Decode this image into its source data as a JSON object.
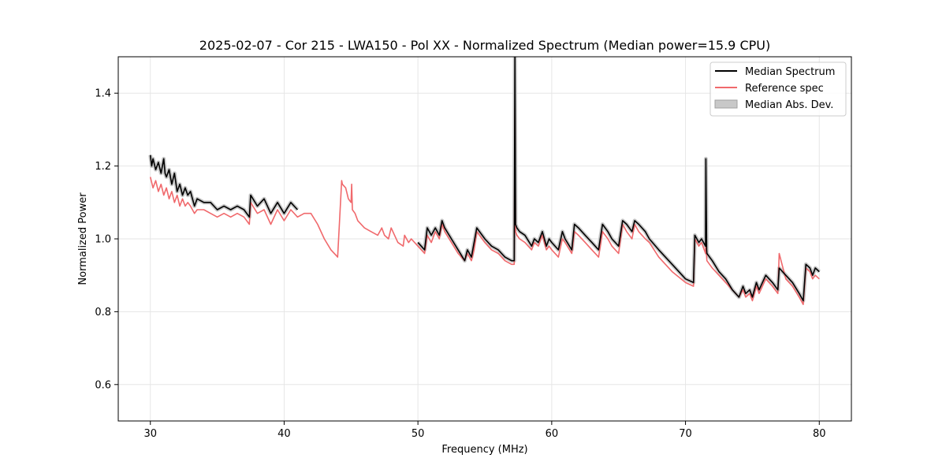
{
  "chart_data": {
    "type": "line",
    "title": "2025-02-07 - Cor 215 - LWA150 - Pol XX - Normalized Spectrum (Median power=15.9 CPU)",
    "xlabel": "Frequency (MHz)",
    "ylabel": "Normalized Power",
    "xlim": [
      27.6,
      82.4
    ],
    "ylim": [
      0.5,
      1.5
    ],
    "x_ticks": [
      30,
      40,
      50,
      60,
      70,
      80
    ],
    "y_ticks": [
      0.6,
      0.8,
      1.0,
      1.2,
      1.4
    ],
    "x_tick_labels": [
      "30",
      "40",
      "50",
      "60",
      "70",
      "80"
    ],
    "y_tick_labels": [
      "0.6",
      "0.8",
      "1.0",
      "1.2",
      "1.4"
    ],
    "grid": true,
    "legend_position": "top-right",
    "legend": [
      "Median Spectrum",
      "Reference spec",
      "Median Abs. Dev."
    ],
    "series": [
      {
        "name": "Median Spectrum",
        "color": "#000000",
        "band_color": "#c8c8c8",
        "segments": [
          {
            "x": [
              30.0,
              30.1,
              30.2,
              30.4,
              30.6,
              30.8,
              31.0,
              31.1,
              31.2,
              31.4,
              31.6,
              31.8,
              32.0,
              32.2,
              32.4,
              32.6,
              32.8,
              33.0,
              33.3,
              33.5,
              34.0,
              34.5,
              35.0,
              35.5,
              36.0,
              36.5,
              37.0,
              37.4,
              37.5,
              38.0,
              38.5,
              39.0,
              39.5,
              40.0,
              40.5,
              41.0
            ],
            "y": [
              1.23,
              1.2,
              1.22,
              1.19,
              1.21,
              1.18,
              1.22,
              1.18,
              1.17,
              1.19,
              1.15,
              1.18,
              1.13,
              1.15,
              1.12,
              1.14,
              1.12,
              1.13,
              1.09,
              1.11,
              1.1,
              1.1,
              1.08,
              1.09,
              1.08,
              1.09,
              1.08,
              1.06,
              1.12,
              1.09,
              1.11,
              1.07,
              1.1,
              1.07,
              1.1,
              1.08
            ]
          },
          {
            "x": [
              50.0,
              50.5,
              50.7,
              51.0,
              51.3,
              51.6,
              51.8,
              52.0,
              52.5,
              53.0,
              53.5,
              53.7,
              54.0,
              54.2,
              54.4,
              55.0,
              55.5,
              56.0,
              56.5,
              57.0,
              57.2,
              57.25,
              57.3,
              57.4,
              57.6,
              58.0,
              58.5,
              58.7,
              59.0,
              59.3,
              59.6,
              59.8,
              60.0,
              60.5,
              60.8,
              61.0,
              61.5,
              61.7,
              62.0,
              62.5,
              63.0,
              63.5,
              63.8,
              64.2,
              64.5,
              65.0,
              65.3,
              65.6,
              66.0,
              66.2,
              66.5,
              67.0,
              67.3,
              68.0,
              69.0,
              70.0,
              70.6,
              70.7,
              71.0,
              71.2,
              71.5,
              71.52,
              71.58,
              71.6,
              72.0,
              72.5,
              73.0,
              73.5,
              74.0,
              74.3,
              74.5,
              74.8,
              75.0,
              75.3,
              75.5,
              76.0,
              76.5,
              76.9,
              77.0,
              77.5,
              78.0,
              78.5,
              78.8,
              79.0,
              79.3,
              79.5,
              79.7,
              80.0
            ],
            "y": [
              0.99,
              0.97,
              1.03,
              1.01,
              1.03,
              1.01,
              1.05,
              1.03,
              1.0,
              0.97,
              0.94,
              0.97,
              0.95,
              0.99,
              1.03,
              1.0,
              0.98,
              0.97,
              0.95,
              0.94,
              0.94,
              1.5,
              1.04,
              1.03,
              1.02,
              1.01,
              0.98,
              1.0,
              0.99,
              1.02,
              0.98,
              1.0,
              0.99,
              0.97,
              1.02,
              1.0,
              0.97,
              1.04,
              1.03,
              1.01,
              0.99,
              0.97,
              1.04,
              1.02,
              1.0,
              0.98,
              1.05,
              1.04,
              1.02,
              1.05,
              1.04,
              1.02,
              1.0,
              0.97,
              0.93,
              0.89,
              0.88,
              1.01,
              0.99,
              1.0,
              0.98,
              1.22,
              0.97,
              0.96,
              0.94,
              0.91,
              0.89,
              0.86,
              0.84,
              0.87,
              0.85,
              0.86,
              0.84,
              0.88,
              0.86,
              0.9,
              0.88,
              0.86,
              0.92,
              0.9,
              0.88,
              0.85,
              0.83,
              0.93,
              0.92,
              0.9,
              0.92,
              0.91
            ]
          }
        ]
      },
      {
        "name": "Reference spec",
        "color": "#f0696c",
        "segments": [
          {
            "x": [
              30.0,
              30.2,
              30.4,
              30.6,
              30.8,
              31.0,
              31.2,
              31.4,
              31.6,
              31.8,
              32.0,
              32.2,
              32.4,
              32.6,
              32.8,
              33.0,
              33.3,
              33.5,
              34.0,
              34.5,
              35.0,
              35.5,
              36.0,
              36.5,
              37.0,
              37.4,
              37.5,
              38.0,
              38.5,
              39.0,
              39.5,
              40.0,
              40.5,
              41.0,
              41.5,
              42.0,
              42.5,
              43.0,
              43.5,
              44.0,
              44.3,
              44.35,
              44.6,
              44.8,
              45.0,
              45.05,
              45.1,
              45.3,
              45.5,
              46.0,
              46.5,
              47.0,
              47.3,
              47.5,
              47.8,
              48.0,
              48.5,
              48.9,
              49.0,
              49.3,
              49.5,
              50.0,
              50.5,
              50.7,
              51.0,
              51.3,
              51.6,
              51.8,
              52.0,
              52.5,
              53.0,
              53.5,
              53.7,
              54.0,
              54.2,
              54.4,
              55.0,
              55.5,
              56.0,
              56.5,
              57.0,
              57.2,
              57.25,
              57.3,
              57.4,
              57.6,
              58.0,
              58.5,
              58.7,
              59.0,
              59.3,
              59.6,
              59.8,
              60.0,
              60.5,
              60.8,
              61.0,
              61.5,
              61.7,
              62.0,
              62.5,
              63.0,
              63.5,
              63.8,
              64.2,
              64.5,
              65.0,
              65.3,
              65.6,
              66.0,
              66.2,
              66.5,
              67.0,
              67.3,
              68.0,
              69.0,
              70.0,
              70.6,
              70.7,
              71.0,
              71.2,
              71.5,
              71.52,
              71.58,
              71.6,
              72.0,
              72.5,
              73.0,
              73.5,
              74.0,
              74.3,
              74.5,
              74.8,
              75.0,
              75.3,
              75.5,
              76.0,
              76.5,
              76.9,
              77.0,
              77.5,
              78.0,
              78.5,
              78.8,
              79.0,
              79.3,
              79.5,
              79.7,
              80.0
            ],
            "y": [
              1.17,
              1.14,
              1.16,
              1.13,
              1.15,
              1.12,
              1.14,
              1.11,
              1.13,
              1.1,
              1.12,
              1.09,
              1.11,
              1.09,
              1.1,
              1.09,
              1.07,
              1.08,
              1.08,
              1.07,
              1.06,
              1.07,
              1.06,
              1.07,
              1.06,
              1.04,
              1.1,
              1.07,
              1.08,
              1.04,
              1.08,
              1.05,
              1.08,
              1.06,
              1.07,
              1.07,
              1.04,
              1.0,
              0.97,
              0.95,
              1.16,
              1.15,
              1.14,
              1.11,
              1.1,
              1.15,
              1.08,
              1.07,
              1.05,
              1.03,
              1.02,
              1.01,
              1.03,
              1.01,
              1.0,
              1.03,
              0.99,
              0.98,
              1.01,
              0.99,
              1.0,
              0.98,
              0.96,
              1.01,
              0.99,
              1.02,
              1.0,
              1.04,
              1.02,
              0.99,
              0.96,
              0.94,
              0.96,
              0.94,
              0.97,
              1.02,
              0.99,
              0.97,
              0.96,
              0.94,
              0.93,
              0.93,
              1.36,
              1.02,
              1.01,
              1.0,
              0.99,
              0.97,
              0.99,
              0.98,
              1.01,
              0.97,
              0.98,
              0.97,
              0.95,
              1.0,
              0.99,
              0.96,
              1.02,
              1.01,
              0.99,
              0.97,
              0.95,
              1.02,
              1.0,
              0.98,
              0.96,
              1.04,
              1.02,
              1.0,
              1.04,
              1.02,
              1.0,
              0.99,
              0.95,
              0.91,
              0.88,
              0.87,
              1.0,
              0.98,
              0.99,
              0.96,
              1.01,
              0.95,
              0.94,
              0.92,
              0.9,
              0.88,
              0.86,
              0.84,
              0.86,
              0.84,
              0.85,
              0.83,
              0.87,
              0.85,
              0.89,
              0.87,
              0.85,
              0.96,
              0.89,
              0.87,
              0.84,
              0.82,
              0.92,
              0.91,
              0.89,
              0.9,
              0.89
            ]
          }
        ]
      }
    ]
  }
}
